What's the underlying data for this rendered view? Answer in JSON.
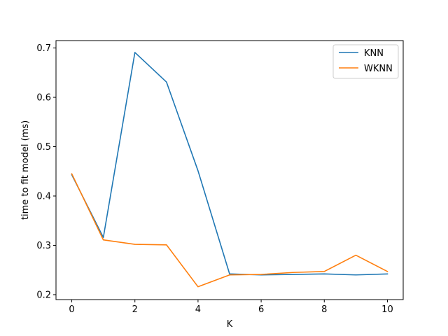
{
  "chart_data": {
    "type": "line",
    "title": "",
    "xlabel": "K",
    "ylabel": "time to fit model (ms)",
    "xlim": [
      -0.5,
      10.5
    ],
    "ylim": [
      0.19,
      0.715
    ],
    "x_ticks": [
      0,
      2,
      4,
      6,
      8,
      10
    ],
    "x_tick_labels": [
      "0",
      "2",
      "4",
      "6",
      "8",
      "10"
    ],
    "y_ticks": [
      0.2,
      0.3,
      0.4,
      0.5,
      0.6,
      0.7
    ],
    "y_tick_labels": [
      "0.2",
      "0.3",
      "0.4",
      "0.5",
      "0.6",
      "0.7"
    ],
    "grid": false,
    "legend_position": "top-right",
    "x": [
      0,
      1,
      2,
      3,
      4,
      5,
      6,
      7,
      8,
      9,
      10
    ],
    "series": [
      {
        "name": "KNN",
        "color": "#1f77b4",
        "values": [
          0.443,
          0.316,
          0.691,
          0.631,
          0.451,
          0.242,
          0.24,
          0.241,
          0.242,
          0.24,
          0.242
        ]
      },
      {
        "name": "WKNN",
        "color": "#ff7f0e",
        "values": [
          0.445,
          0.311,
          0.302,
          0.301,
          0.216,
          0.24,
          0.241,
          0.245,
          0.247,
          0.28,
          0.247
        ]
      }
    ]
  }
}
